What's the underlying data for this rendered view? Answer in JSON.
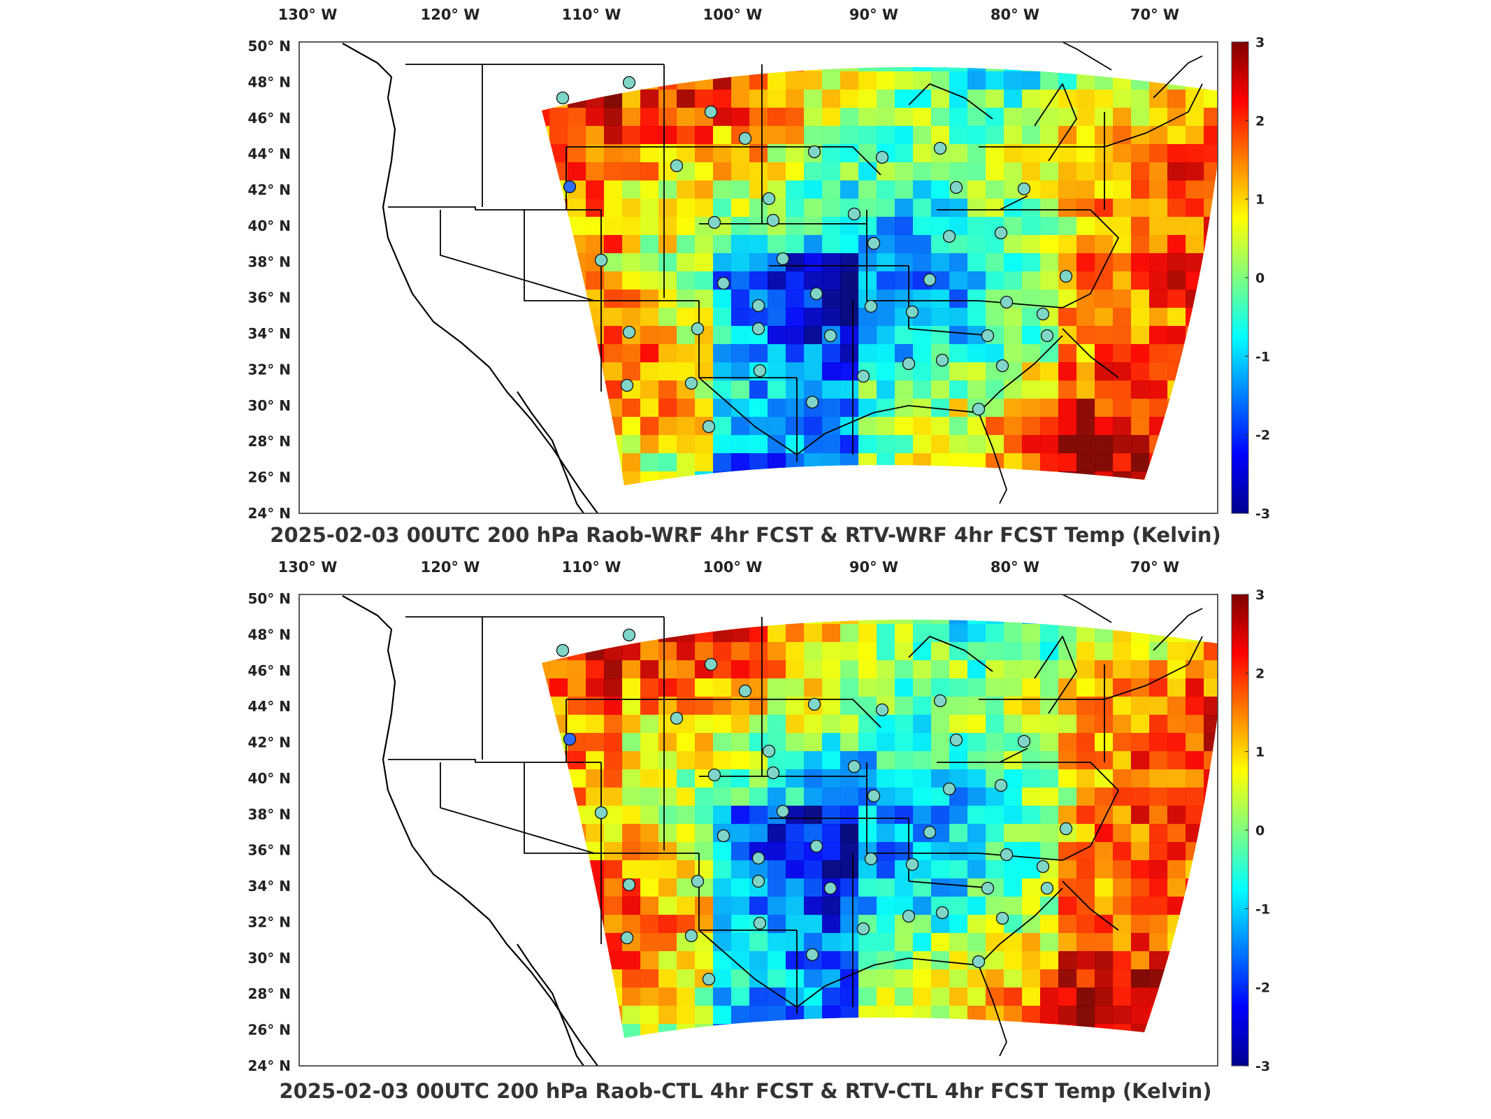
{
  "panels": [
    {
      "title": "2025-02-03 00UTC 200 hPa Raob-WRF 4hr FCST & RTV-WRF 4hr FCST Temp (Kelvin)"
    },
    {
      "title": "2025-02-03 00UTC 200 hPa Raob-CTL 4hr FCST & RTV-CTL 4hr FCST Temp (Kelvin)"
    }
  ],
  "longitude_labels": [
    "130° W",
    "120° W",
    "110° W",
    "100° W",
    "90° W",
    "80° W",
    "70° W"
  ],
  "latitude_labels": [
    "50° N",
    "48° N",
    "46° N",
    "44° N",
    "42° N",
    "40° N",
    "38° N",
    "36° N",
    "34° N",
    "32° N",
    "30° N",
    "28° N",
    "26° N",
    "24° N"
  ],
  "colorbar": {
    "ticks": [
      "3",
      "2",
      "1",
      "0",
      "-1",
      "-2",
      "-3"
    ],
    "range": [
      -3,
      3
    ],
    "colormap": "jet",
    "colors": [
      "#00008f",
      "#0000ff",
      "#00ffff",
      "#ffff00",
      "#ff0000",
      "#800000"
    ]
  },
  "raob_stations_count": 45,
  "station_marker_fill": "#7fd6c8"
}
